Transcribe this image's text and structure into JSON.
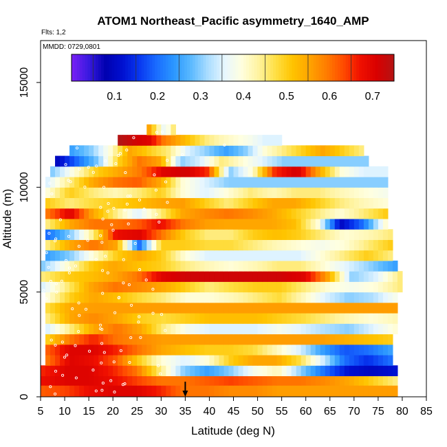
{
  "chart_data": {
    "type": "heatmap",
    "title": "ATOM1 Northeast_Pacific asymmetry_1640_AMP",
    "flights_label": "Flts: 1,2",
    "dates_label": "MMDD: 0729,0801",
    "xlabel": "Latitude (deg N)",
    "ylabel": "Altitude (m)",
    "xlim": [
      5,
      85
    ],
    "ylim": [
      0,
      17000
    ],
    "x_ticks": [
      5,
      10,
      15,
      20,
      25,
      30,
      35,
      40,
      45,
      50,
      55,
      60,
      65,
      70,
      75,
      80,
      85
    ],
    "y_ticks": [
      0,
      5000,
      10000,
      15000
    ],
    "colorbar": {
      "min": 0.0,
      "max": 0.75,
      "ticks": [
        0.1,
        0.2,
        0.3,
        0.4,
        0.5,
        0.6,
        0.7
      ],
      "colors": [
        "#7a1ff5",
        "#3a1ae0",
        "#0000b0",
        "#0010d0",
        "#0838f0",
        "#1a6cff",
        "#2a96ff",
        "#58b8ff",
        "#a8dcff",
        "#e6f6ff",
        "#ffffe0",
        "#fff3a0",
        "#ffe046",
        "#ffc400",
        "#ffa400",
        "#ff7e00",
        "#ff4c00",
        "#f01000",
        "#d80000",
        "#b41414"
      ]
    },
    "marker_latitude": 35,
    "layers": [
      {
        "alt": [
          0,
          550
        ],
        "lat": [
          5,
          79
        ],
        "values": [
          0.62,
          0.64,
          0.68,
          0.7,
          0.7,
          0.66,
          0.6,
          0.6,
          0.58,
          0.58,
          0.56,
          0.56,
          0.56,
          0.56,
          0.56,
          0.56
        ]
      },
      {
        "alt": [
          550,
          1000
        ],
        "lat": [
          5,
          79
        ],
        "values": [
          0.68,
          0.7,
          0.7,
          0.68,
          0.64,
          0.6,
          0.6,
          0.62,
          0.64,
          0.62,
          0.6,
          0.6,
          0.58,
          0.55,
          0.5,
          0.45
        ]
      },
      {
        "alt": [
          1000,
          1500
        ],
        "lat": [
          5,
          79
        ],
        "values": [
          0.66,
          0.7,
          0.7,
          0.66,
          0.6,
          0.45,
          0.3,
          0.25,
          0.3,
          0.38,
          0.42,
          0.3,
          0.2,
          0.12,
          0.1,
          0.12
        ]
      },
      {
        "alt": [
          1500,
          2000
        ],
        "lat": [
          6,
          78
        ],
        "values": [
          0.6,
          0.7,
          0.68,
          0.62,
          0.5,
          0.4,
          0.35,
          0.4,
          0.5,
          0.55,
          0.55,
          0.48,
          0.35,
          0.2,
          0.15,
          0.2
        ]
      },
      {
        "alt": [
          2000,
          2500
        ],
        "lat": [
          6,
          78
        ],
        "values": [
          0.62,
          0.7,
          0.7,
          0.66,
          0.6,
          0.55,
          0.52,
          0.5,
          0.5,
          0.48,
          0.42,
          0.35,
          0.25,
          0.18,
          0.2,
          0.25
        ]
      },
      {
        "alt": [
          2500,
          3000
        ],
        "lat": [
          6,
          78
        ],
        "values": [
          0.5,
          0.6,
          0.66,
          0.6,
          0.58,
          0.56,
          0.56,
          0.56,
          0.56,
          0.56,
          0.56,
          0.56,
          0.56,
          0.54,
          0.52,
          0.5
        ]
      },
      {
        "alt": [
          3000,
          3500
        ],
        "lat": [
          6,
          79
        ],
        "values": [
          0.35,
          0.45,
          0.55,
          0.6,
          0.55,
          0.45,
          0.38,
          0.35,
          0.35,
          0.35,
          0.38,
          0.35,
          0.32,
          0.3,
          0.35,
          0.4
        ]
      },
      {
        "alt": [
          3500,
          4000
        ],
        "lat": [
          6,
          79
        ],
        "values": [
          0.45,
          0.55,
          0.58,
          0.55,
          0.5,
          0.48,
          0.5,
          0.52,
          0.52,
          0.52,
          0.5,
          0.48,
          0.45,
          0.42,
          0.4,
          0.42
        ]
      },
      {
        "alt": [
          4000,
          4500
        ],
        "lat": [
          6,
          79
        ],
        "values": [
          0.48,
          0.55,
          0.56,
          0.56,
          0.56,
          0.56,
          0.56,
          0.56,
          0.56,
          0.56,
          0.56,
          0.56,
          0.56,
          0.56,
          0.56,
          0.56
        ]
      },
      {
        "alt": [
          4500,
          5000
        ],
        "lat": [
          6,
          79
        ],
        "values": [
          0.4,
          0.5,
          0.55,
          0.52,
          0.48,
          0.45,
          0.4,
          0.4,
          0.42,
          0.45,
          0.48,
          0.42,
          0.35,
          0.3,
          0.32,
          0.38
        ]
      },
      {
        "alt": [
          5000,
          5500
        ],
        "lat": [
          5,
          80
        ],
        "values": [
          0.35,
          0.45,
          0.55,
          0.6,
          0.58,
          0.55,
          0.5,
          0.45,
          0.48,
          0.5,
          0.5,
          0.45,
          0.4,
          0.38,
          0.4,
          0.45
        ]
      },
      {
        "alt": [
          5500,
          6000
        ],
        "lat": [
          5,
          80
        ],
        "values": [
          0.45,
          0.5,
          0.52,
          0.55,
          0.6,
          0.7,
          0.72,
          0.72,
          0.72,
          0.72,
          0.72,
          0.7,
          0.55,
          0.3,
          0.35,
          0.45
        ]
      },
      {
        "alt": [
          6000,
          6500
        ],
        "lat": [
          5,
          79
        ],
        "values": [
          0.3,
          0.4,
          0.5,
          0.55,
          0.52,
          0.5,
          0.45,
          0.42,
          0.4,
          0.42,
          0.45,
          0.45,
          0.4,
          0.35,
          0.3,
          0.25
        ]
      },
      {
        "alt": [
          6500,
          7000
        ],
        "lat": [
          6,
          78
        ],
        "values": [
          0.25,
          0.3,
          0.4,
          0.5,
          0.55,
          0.5,
          0.4,
          0.35,
          0.35,
          0.35,
          0.35,
          0.35,
          0.4,
          0.45,
          0.5,
          0.45
        ]
      },
      {
        "alt": [
          7000,
          7500
        ],
        "lat": [
          6,
          78
        ],
        "values": [
          0.45,
          0.55,
          0.6,
          0.55,
          0.2,
          0.5,
          0.5,
          0.48,
          0.48,
          0.45,
          0.42,
          0.4,
          0.38,
          0.4,
          0.45,
          0.5
        ]
      },
      {
        "alt": [
          7500,
          8000
        ],
        "lat": [
          6,
          78
        ],
        "values": [
          0.2,
          0.3,
          0.45,
          0.68,
          0.7,
          0.6,
          0.5,
          0.45,
          0.45,
          0.5,
          0.52,
          0.5,
          0.45,
          0.4,
          0.42,
          0.45
        ]
      },
      {
        "alt": [
          8000,
          8500
        ],
        "lat": [
          6,
          77
        ],
        "values": [
          0.45,
          0.55,
          0.6,
          0.6,
          0.62,
          0.68,
          0.6,
          0.56,
          0.55,
          0.55,
          0.55,
          0.52,
          0.4,
          0.1,
          0.2,
          0.4
        ]
      },
      {
        "alt": [
          8500,
          9000
        ],
        "lat": [
          6,
          77
        ],
        "values": [
          0.6,
          0.7,
          0.55,
          0.45,
          0.35,
          0.45,
          0.55,
          0.58,
          0.6,
          0.58,
          0.55,
          0.5,
          0.45,
          0.4,
          0.45,
          0.5
        ]
      },
      {
        "alt": [
          9000,
          9500
        ],
        "lat": [
          6,
          77
        ],
        "values": [
          0.5,
          0.45,
          0.48,
          0.5,
          0.52,
          0.55,
          0.56,
          0.5,
          0.45,
          0.5,
          0.55,
          0.55,
          0.5,
          0.45,
          0.42,
          0.4
        ]
      },
      {
        "alt": [
          9500,
          10000
        ],
        "lat": [
          6,
          77
        ],
        "values": [
          0.4,
          0.5,
          0.45,
          0.42,
          0.45,
          0.5,
          0.4,
          0.35,
          0.4,
          0.45,
          0.42,
          0.45,
          0.45,
          0.42,
          0.4,
          0.38
        ]
      },
      {
        "alt": [
          10000,
          10500
        ],
        "lat": [
          6,
          77
        ],
        "values": [
          0.35,
          0.45,
          0.55,
          0.6,
          0.62,
          0.55,
          0.4,
          0.35,
          0.3,
          0.3,
          0.3,
          0.3,
          0.3,
          0.3,
          0.3,
          0.3
        ]
      },
      {
        "alt": [
          10500,
          11000
        ],
        "lat": [
          7,
          77
        ],
        "values": [
          0.3,
          0.4,
          0.5,
          0.55,
          0.6,
          0.7,
          0.72,
          0.65,
          0.3,
          0.4,
          0.65,
          0.72,
          0.55,
          0.4,
          0.35,
          0.35
        ]
      },
      {
        "alt": [
          11000,
          11500
        ],
        "lat": [
          8,
          73
        ],
        "values": [
          0.1,
          0.2,
          0.3,
          0.5,
          0.6,
          0.55,
          0.3,
          0.35,
          0.45,
          0.4,
          0.35,
          0.3,
          0.3,
          0.3,
          0.3,
          0.3
        ]
      },
      {
        "alt": [
          11500,
          12000
        ],
        "lat": [
          11,
          72
        ],
        "values": [
          0.25,
          0.3,
          0.4,
          0.55,
          0.5,
          0.45,
          0.35,
          0.3,
          0.25,
          0.3,
          0.4,
          0.45,
          0.5,
          0.55,
          0.5,
          0.45
        ]
      },
      {
        "alt": [
          12000,
          12500
        ],
        "lat": [
          21,
          55
        ],
        "values": [
          0.75,
          0.72,
          0.7,
          0.6,
          0.55,
          0.5,
          0.45,
          0.42,
          0.4,
          0.38,
          0.35,
          0.35
        ]
      },
      {
        "alt": [
          12500,
          13000
        ],
        "lat": [
          27,
          33
        ],
        "values": [
          0.55,
          0.45,
          0.35,
          0.45
        ]
      }
    ]
  }
}
